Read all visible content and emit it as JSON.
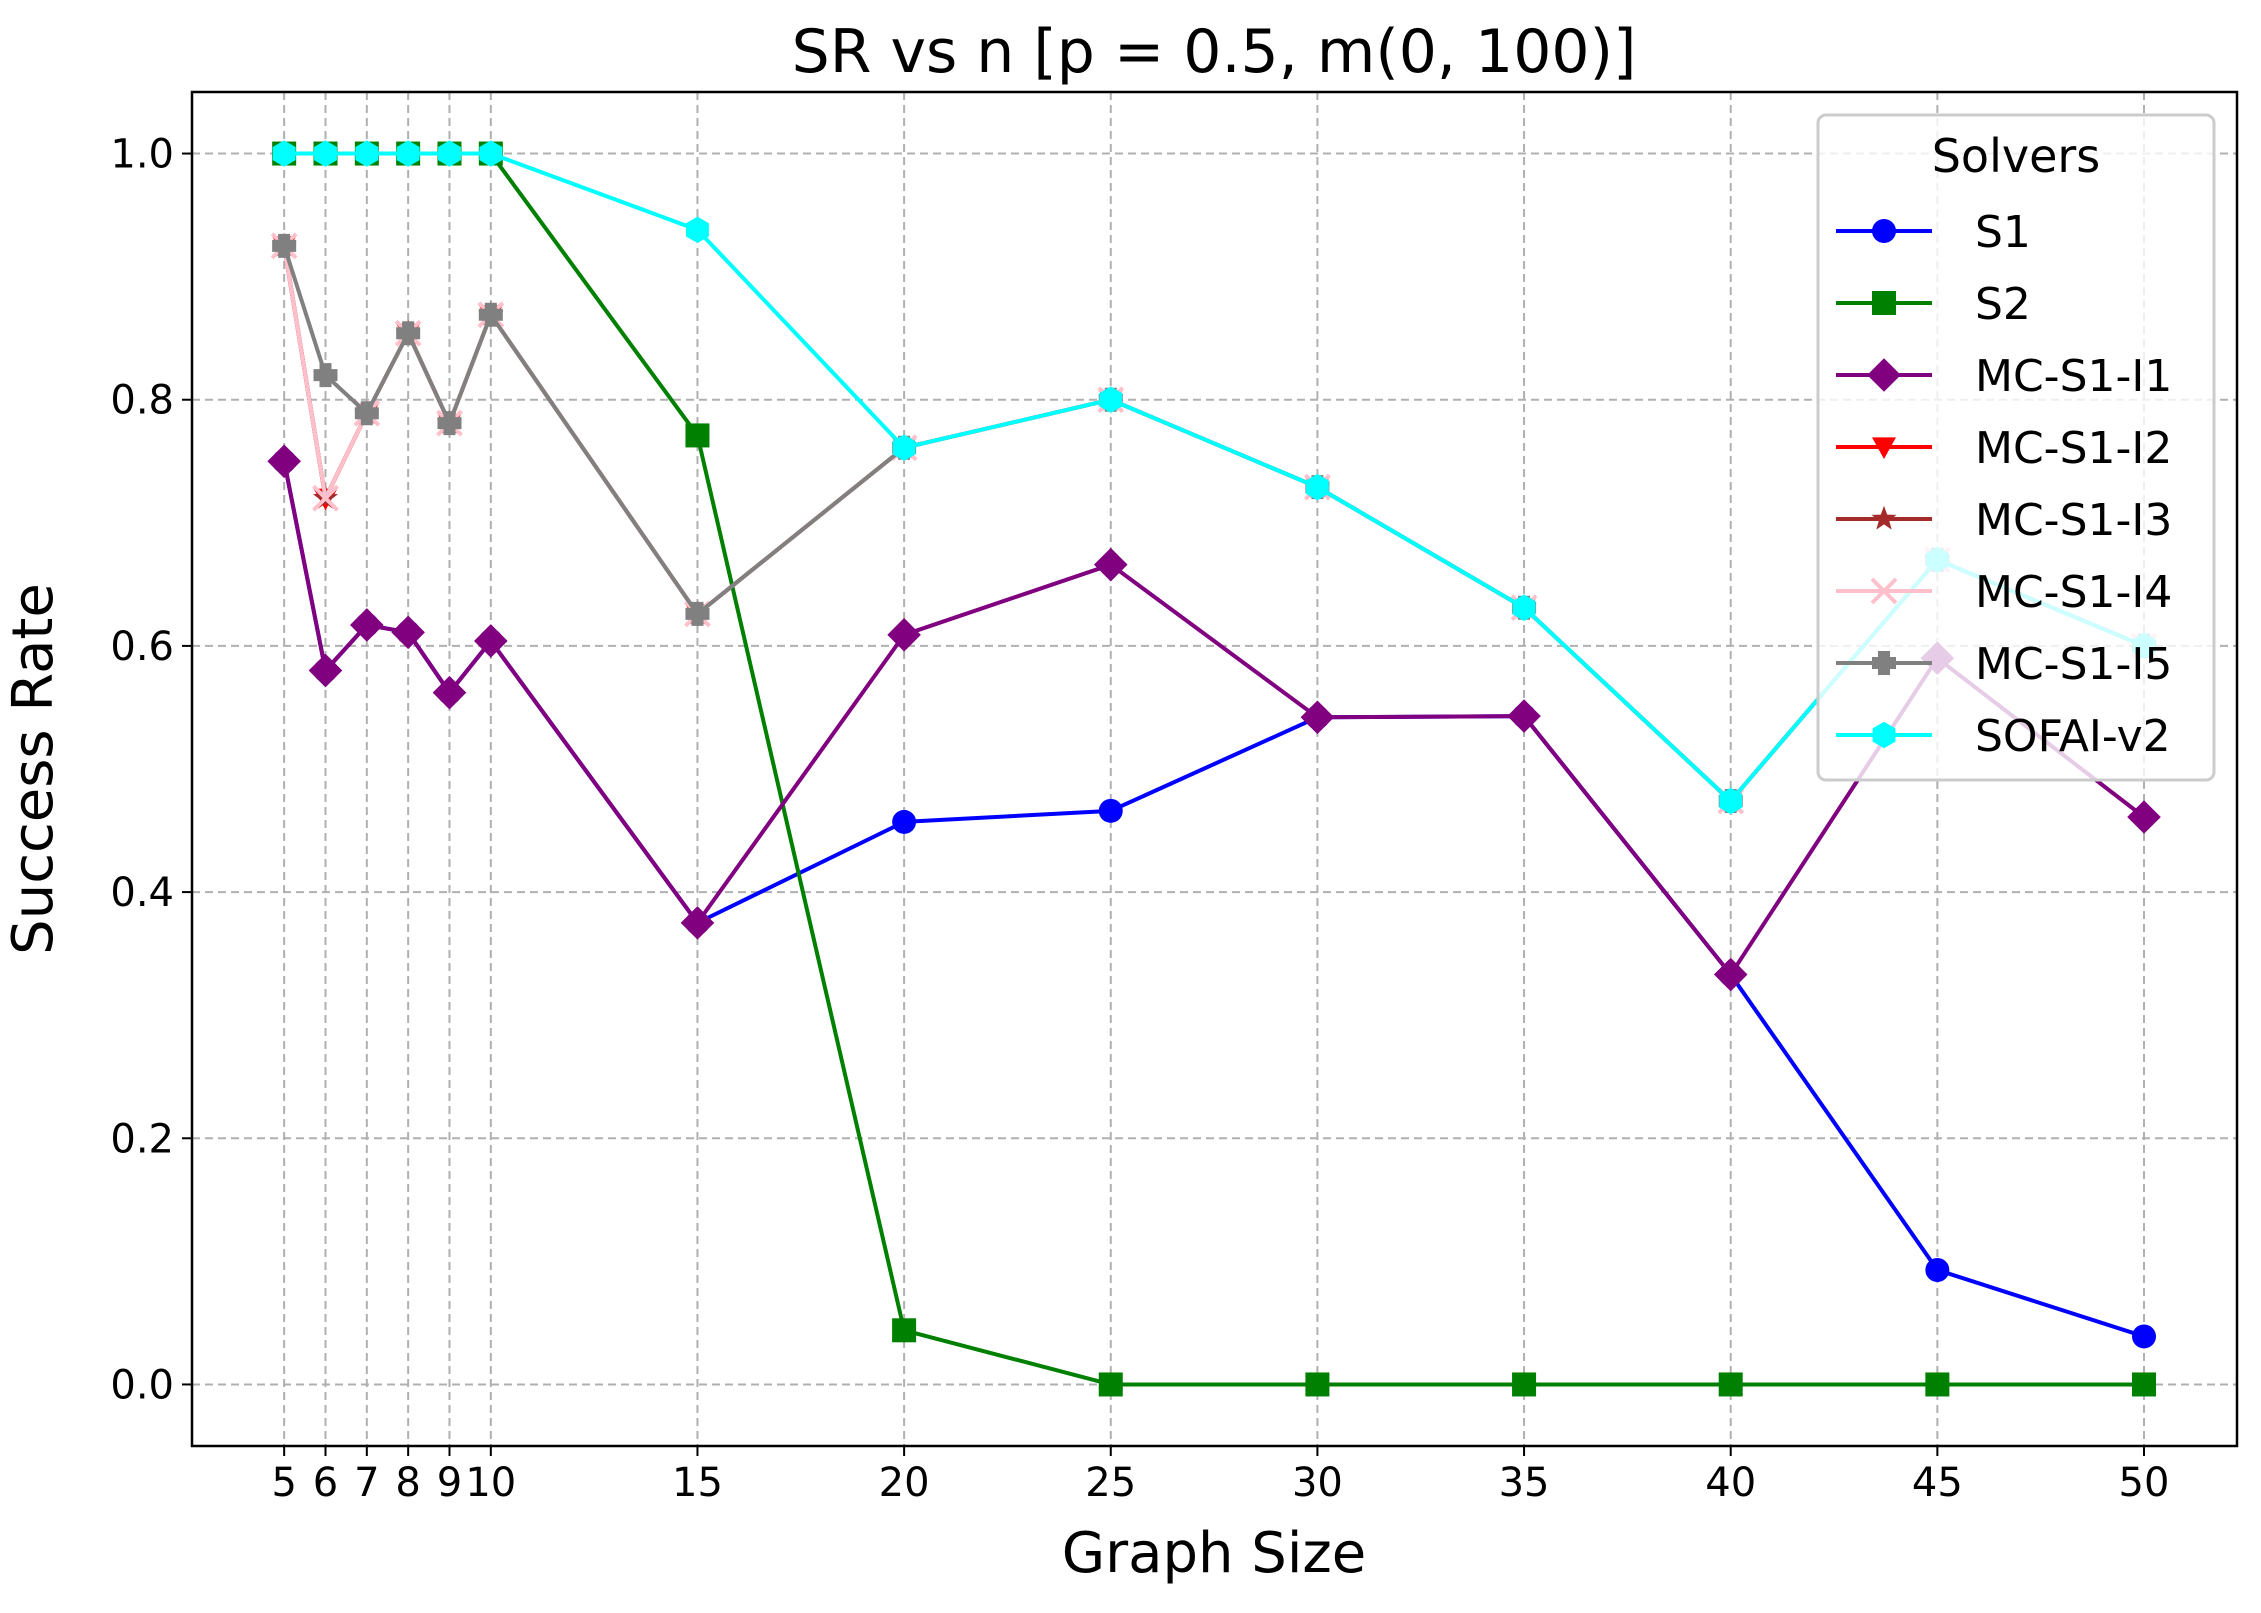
{
  "chart_data": {
    "type": "line",
    "title": "SR vs n [p = 0.5, m(0, 100)]",
    "xlabel": "Graph Size",
    "ylabel": "Success Rate",
    "xlim": [
      2.77,
      52.25
    ],
    "ylim": [
      -0.05,
      1.05
    ],
    "x_ticks": [
      5,
      6,
      7,
      8,
      9,
      10,
      15,
      20,
      25,
      30,
      35,
      40,
      45,
      50
    ],
    "x_tick_labels": [
      "5",
      "6",
      "7",
      "8",
      "9",
      "10",
      "15",
      "20",
      "25",
      "30",
      "35",
      "40",
      "45",
      "50"
    ],
    "y_ticks": [
      0.0,
      0.2,
      0.4,
      0.6,
      0.8,
      1.0
    ],
    "y_tick_labels": [
      "0.0",
      "0.2",
      "0.4",
      "0.6",
      "0.8",
      "1.0"
    ],
    "grid": true,
    "legend": {
      "title": "Solvers",
      "placement": "upper-right"
    },
    "x": [
      5,
      6,
      7,
      8,
      9,
      10,
      15,
      20,
      25,
      30,
      35,
      40,
      45,
      50
    ],
    "series": [
      {
        "name": "S1",
        "color": "#0000ff",
        "marker": "circle",
        "values": [
          0.75,
          0.58,
          0.617,
          0.611,
          0.562,
          0.604,
          0.375,
          0.457,
          0.466,
          0.542,
          0.543,
          0.333,
          0.093,
          0.039
        ]
      },
      {
        "name": "S2",
        "color": "#008000",
        "marker": "square",
        "values": [
          1.0,
          1.0,
          1.0,
          1.0,
          1.0,
          1.0,
          0.771,
          0.044,
          0.0,
          0.0,
          0.0,
          0.0,
          0.0,
          0.0
        ]
      },
      {
        "name": "MC-S1-I1",
        "color": "#800080",
        "marker": "diamond",
        "values": [
          0.75,
          0.58,
          0.617,
          0.611,
          0.562,
          0.604,
          0.375,
          0.609,
          0.666,
          0.542,
          0.543,
          0.333,
          0.59,
          0.461
        ]
      },
      {
        "name": "MC-S1-I2",
        "color": "#ff0000",
        "marker": "triangle-down",
        "values": [
          0.925,
          0.72,
          0.789,
          0.854,
          0.781,
          0.869,
          0.626,
          0.761,
          0.8,
          0.729,
          0.631,
          0.474,
          0.67,
          0.6
        ]
      },
      {
        "name": "MC-S1-I3",
        "color": "#a52a2a",
        "marker": "star",
        "values": [
          0.925,
          0.72,
          0.789,
          0.854,
          0.781,
          0.869,
          0.626,
          0.761,
          0.8,
          0.729,
          0.631,
          0.474,
          0.67,
          0.6
        ]
      },
      {
        "name": "MC-S1-I4",
        "color": "#ffc0cb",
        "marker": "x",
        "values": [
          0.925,
          0.72,
          0.789,
          0.854,
          0.781,
          0.869,
          0.626,
          0.761,
          0.8,
          0.729,
          0.631,
          0.474,
          0.67,
          0.6
        ]
      },
      {
        "name": "MC-S1-I5",
        "color": "#808080",
        "marker": "plus-filled",
        "values": [
          0.925,
          0.82,
          0.789,
          0.854,
          0.781,
          0.869,
          0.626,
          0.761,
          0.8,
          0.729,
          0.631,
          0.474,
          0.67,
          0.6
        ]
      },
      {
        "name": "SOFAI-v2",
        "color": "#00ffff",
        "marker": "hexagon",
        "values": [
          1.0,
          1.0,
          1.0,
          1.0,
          1.0,
          1.0,
          0.938,
          0.761,
          0.8,
          0.729,
          0.631,
          0.474,
          0.67,
          0.6
        ]
      }
    ]
  }
}
